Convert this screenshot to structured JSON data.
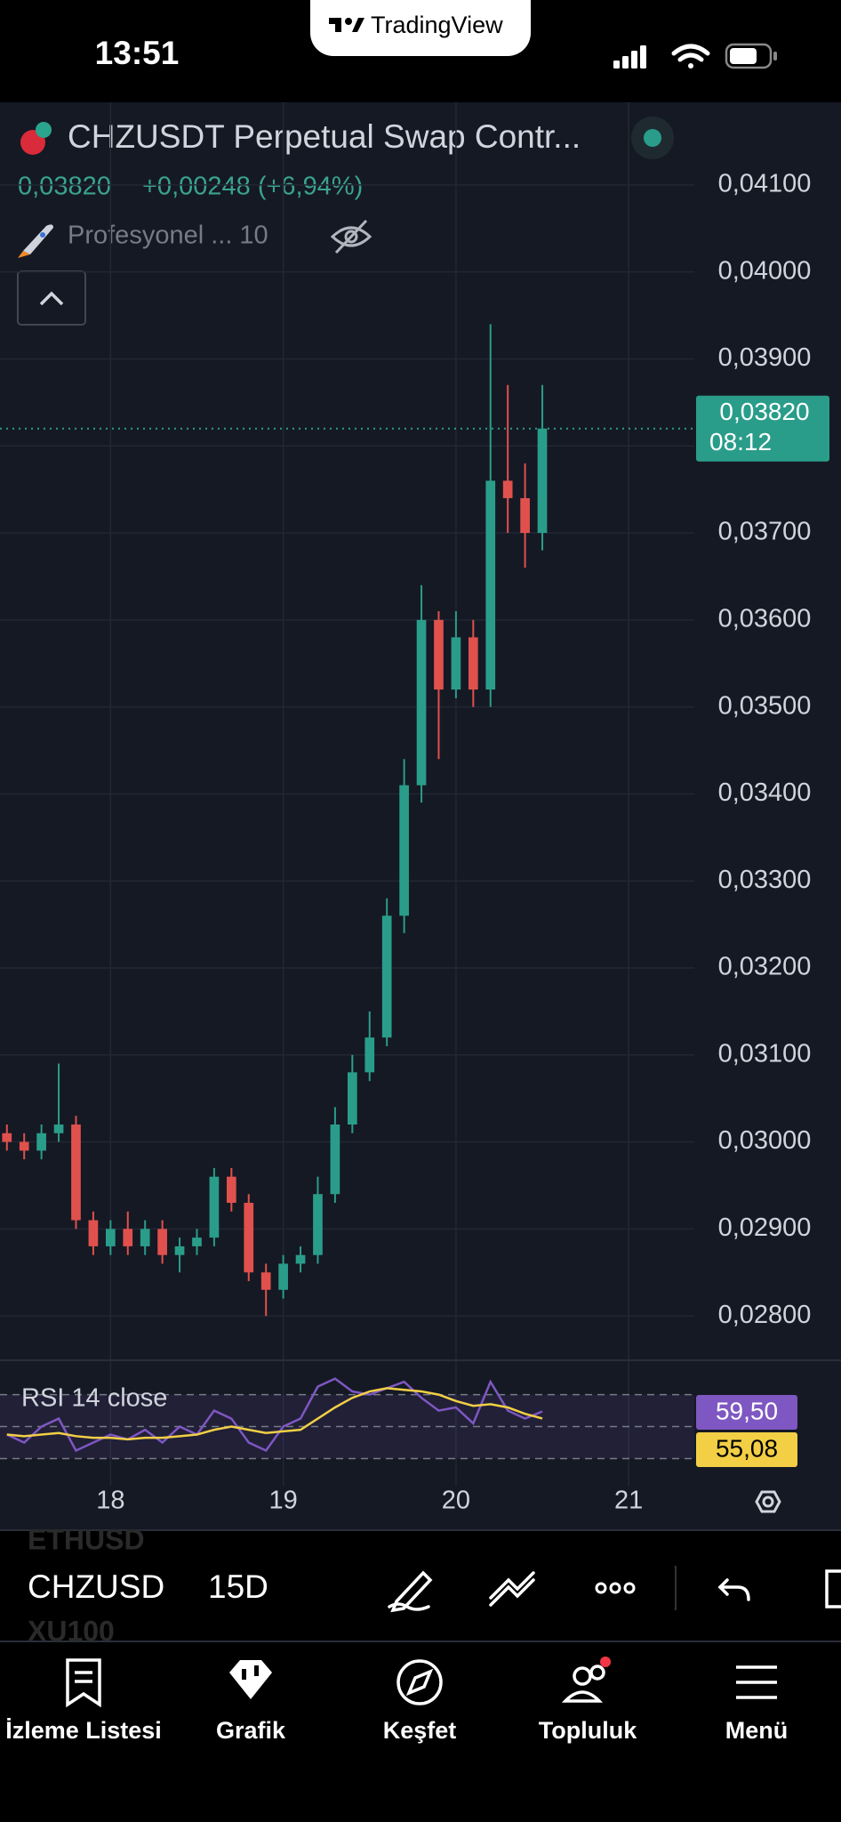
{
  "status_bar": {
    "time": "13:51",
    "brand": "TradingView"
  },
  "header": {
    "symbol": "CHZUSDT Perpetual Swap Contr...",
    "price": "0,03820",
    "change": "+0,00248 (+6,94%)",
    "indicator": "Profesyonel ... 10"
  },
  "chart_data": [
    {
      "type": "candlestick",
      "x": [
        17.4,
        17.5,
        17.6,
        17.7,
        17.8,
        17.9,
        18.0,
        18.1,
        18.2,
        18.3,
        18.4,
        18.5,
        18.6,
        18.7,
        18.8,
        18.9,
        19.0,
        19.1,
        19.2,
        19.3,
        19.4,
        19.5,
        19.6,
        19.7,
        19.8,
        19.9,
        20.0,
        20.1,
        20.2,
        20.3,
        20.4,
        20.5
      ],
      "open": [
        0.0301,
        0.03,
        0.0299,
        0.0301,
        0.0302,
        0.0291,
        0.0288,
        0.029,
        0.0288,
        0.029,
        0.0287,
        0.0288,
        0.0289,
        0.0296,
        0.0293,
        0.0285,
        0.0283,
        0.0286,
        0.0287,
        0.0294,
        0.0302,
        0.0308,
        0.0312,
        0.0326,
        0.0341,
        0.036,
        0.0352,
        0.0358,
        0.0352,
        0.0376,
        0.0374,
        0.037
      ],
      "high": [
        0.0302,
        0.0301,
        0.0302,
        0.0309,
        0.0303,
        0.0292,
        0.0291,
        0.0292,
        0.0291,
        0.0291,
        0.0289,
        0.029,
        0.0297,
        0.0297,
        0.0294,
        0.0286,
        0.0287,
        0.0288,
        0.0296,
        0.0304,
        0.031,
        0.0315,
        0.0328,
        0.0344,
        0.0364,
        0.0361,
        0.0361,
        0.036,
        0.0394,
        0.0387,
        0.0378,
        0.0387
      ],
      "low": [
        0.0299,
        0.0298,
        0.0298,
        0.03,
        0.029,
        0.0287,
        0.0287,
        0.0287,
        0.0287,
        0.0286,
        0.0285,
        0.0287,
        0.0288,
        0.0292,
        0.0284,
        0.028,
        0.0282,
        0.0285,
        0.0286,
        0.0293,
        0.0301,
        0.0307,
        0.0311,
        0.0324,
        0.0339,
        0.0344,
        0.0351,
        0.035,
        0.035,
        0.037,
        0.0366,
        0.0368
      ],
      "close": [
        0.03,
        0.0299,
        0.0301,
        0.0302,
        0.0291,
        0.0288,
        0.029,
        0.0288,
        0.029,
        0.0287,
        0.0288,
        0.0289,
        0.0296,
        0.0293,
        0.0285,
        0.0283,
        0.0286,
        0.0287,
        0.0294,
        0.0302,
        0.0308,
        0.0312,
        0.0326,
        0.0341,
        0.036,
        0.0352,
        0.0358,
        0.0352,
        0.0376,
        0.0374,
        0.037,
        0.0382
      ],
      "up_color": "#2a9d8a",
      "down_color": "#e0514d",
      "xlim": [
        17.36,
        21.38
      ],
      "xticks": [
        18,
        19,
        20,
        21
      ],
      "ylim": [
        0.02749,
        0.04195
      ],
      "yticks": [
        {
          "value": 0.028,
          "label": "0,02800"
        },
        {
          "value": 0.029,
          "label": "0,02900"
        },
        {
          "value": 0.03,
          "label": "0,03000"
        },
        {
          "value": 0.031,
          "label": "0,03100"
        },
        {
          "value": 0.032,
          "label": "0,03200"
        },
        {
          "value": 0.033,
          "label": "0,03300"
        },
        {
          "value": 0.034,
          "label": "0,03400"
        },
        {
          "value": 0.035,
          "label": "0,03500"
        },
        {
          "value": 0.036,
          "label": "0,03600"
        },
        {
          "value": 0.037,
          "label": "0,03700"
        },
        {
          "value": 0.038,
          "label": "0,03800"
        },
        {
          "value": 0.039,
          "label": "0,03900"
        },
        {
          "value": 0.04,
          "label": "0,04000"
        },
        {
          "value": 0.041,
          "label": "0,04100"
        }
      ],
      "grid": true,
      "last_price": {
        "value": 0.0382,
        "label": "0,03820"
      },
      "countdown": "08:12"
    },
    {
      "type": "line",
      "title": "RSI 14 close",
      "x": [
        17.4,
        17.5,
        17.6,
        17.7,
        17.8,
        17.9,
        18.0,
        18.1,
        18.2,
        18.3,
        18.4,
        18.5,
        18.6,
        18.7,
        18.8,
        18.9,
        19.0,
        19.1,
        19.2,
        19.3,
        19.4,
        19.5,
        19.6,
        19.7,
        19.8,
        19.9,
        20.0,
        20.1,
        20.2,
        20.3,
        20.4,
        20.5
      ],
      "series": [
        {
          "name": "RSI",
          "color": "#7e57c2",
          "values": [
            45,
            40,
            50,
            55,
            35,
            40,
            45,
            42,
            48,
            40,
            50,
            45,
            60,
            55,
            40,
            35,
            50,
            55,
            75,
            80,
            72,
            70,
            74,
            78,
            68,
            60,
            62,
            52,
            78,
            60,
            55,
            59.5
          ],
          "value_labels": [
            null,
            null,
            null,
            null,
            null,
            null,
            null,
            null,
            null,
            null,
            null,
            null,
            null,
            null,
            null,
            null,
            null,
            null,
            null,
            null,
            null,
            null,
            null,
            null,
            null,
            null,
            null,
            null,
            null,
            null,
            null,
            "59,50"
          ]
        },
        {
          "name": "MA",
          "color": "#f2cf45",
          "values": [
            45,
            44,
            45,
            46,
            44,
            43,
            43,
            42,
            43,
            43,
            44,
            45,
            48,
            50,
            48,
            46,
            47,
            48,
            55,
            62,
            68,
            72,
            74,
            73,
            72,
            70,
            66,
            63,
            64,
            62,
            58,
            55.08
          ],
          "value_labels": [
            null,
            null,
            null,
            null,
            null,
            null,
            null,
            null,
            null,
            null,
            null,
            null,
            null,
            null,
            null,
            null,
            null,
            null,
            null,
            null,
            null,
            null,
            null,
            null,
            null,
            null,
            null,
            null,
            null,
            null,
            null,
            "55,08"
          ]
        }
      ],
      "xlim": [
        17.36,
        21.38
      ],
      "ylim": [
        13,
        91.5
      ],
      "levels": [
        30,
        50,
        70
      ]
    }
  ],
  "toolbar": {
    "symbol": "CHZUSD",
    "interval": "15D",
    "ghost_above": "ETHUSD",
    "ghost_below": "XU100"
  },
  "nav": [
    "İzleme Listesi",
    "Grafik",
    "Keşfet",
    "Topluluk",
    "Menü"
  ]
}
